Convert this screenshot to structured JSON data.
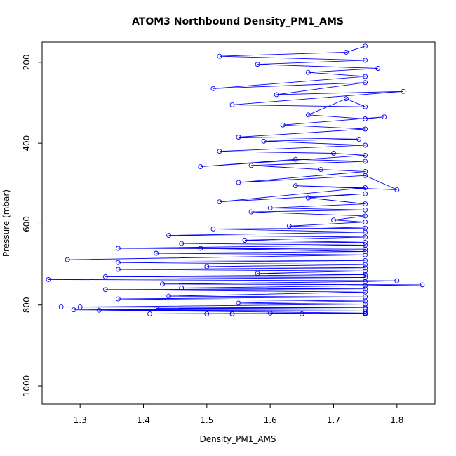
{
  "chart_data": {
    "type": "scatter",
    "title": "ATOM3 Northbound Density_PM1_AMS",
    "xlabel": "Density_PM1_AMS",
    "ylabel": "Pressure (mbar)",
    "xlim": [
      1.24,
      1.86
    ],
    "ylim": [
      1045,
      150
    ],
    "y_reversed": true,
    "x_ticks": [
      1.3,
      1.4,
      1.5,
      1.6,
      1.7,
      1.8
    ],
    "y_ticks": [
      200,
      400,
      600,
      800,
      1000
    ],
    "grid": false,
    "legend": "none",
    "color": "#0000ff",
    "series": [
      {
        "points": [
          [
            1.75,
            160
          ],
          [
            1.72,
            175
          ],
          [
            1.52,
            185
          ],
          [
            1.75,
            195
          ],
          [
            1.58,
            205
          ],
          [
            1.77,
            215
          ],
          [
            1.66,
            225
          ],
          [
            1.75,
            235
          ],
          [
            1.51,
            265
          ],
          [
            1.75,
            250
          ],
          [
            1.61,
            280
          ],
          [
            1.81,
            272
          ],
          [
            1.54,
            305
          ],
          [
            1.75,
            310
          ],
          [
            1.72,
            290
          ],
          [
            1.66,
            330
          ],
          [
            1.75,
            340
          ],
          [
            1.78,
            335
          ],
          [
            1.62,
            355
          ],
          [
            1.75,
            365
          ],
          [
            1.55,
            385
          ],
          [
            1.74,
            390
          ],
          [
            1.59,
            395
          ],
          [
            1.75,
            405
          ],
          [
            1.52,
            420
          ],
          [
            1.7,
            425
          ],
          [
            1.75,
            430
          ],
          [
            1.49,
            458
          ],
          [
            1.64,
            440
          ],
          [
            1.75,
            445
          ],
          [
            1.57,
            455
          ],
          [
            1.68,
            465
          ],
          [
            1.75,
            470
          ],
          [
            1.55,
            497
          ],
          [
            1.75,
            480
          ],
          [
            1.8,
            515
          ],
          [
            1.64,
            505
          ],
          [
            1.75,
            510
          ],
          [
            1.52,
            545
          ],
          [
            1.75,
            525
          ],
          [
            1.66,
            535
          ],
          [
            1.75,
            550
          ],
          [
            1.6,
            560
          ],
          [
            1.75,
            565
          ],
          [
            1.57,
            570
          ],
          [
            1.75,
            580
          ],
          [
            1.7,
            590
          ],
          [
            1.75,
            595
          ],
          [
            1.63,
            605
          ],
          [
            1.75,
            610
          ],
          [
            1.51,
            612
          ],
          [
            1.75,
            620
          ],
          [
            1.44,
            628
          ],
          [
            1.75,
            632
          ],
          [
            1.56,
            640
          ],
          [
            1.75,
            645
          ],
          [
            1.46,
            648
          ],
          [
            1.75,
            652
          ],
          [
            1.36,
            660
          ],
          [
            1.75,
            662
          ],
          [
            1.49,
            660
          ],
          [
            1.75,
            668
          ],
          [
            1.42,
            672
          ],
          [
            1.75,
            676
          ],
          [
            1.28,
            688
          ],
          [
            1.75,
            690
          ],
          [
            1.36,
            695
          ],
          [
            1.75,
            700
          ],
          [
            1.5,
            705
          ],
          [
            1.75,
            708
          ],
          [
            1.36,
            712
          ],
          [
            1.75,
            716
          ],
          [
            1.58,
            722
          ],
          [
            1.75,
            725
          ],
          [
            1.34,
            730
          ],
          [
            1.75,
            732
          ],
          [
            1.25,
            737
          ],
          [
            1.8,
            740
          ],
          [
            1.75,
            742
          ],
          [
            1.43,
            748
          ],
          [
            1.84,
            750
          ],
          [
            1.75,
            752
          ],
          [
            1.46,
            758
          ],
          [
            1.75,
            760
          ],
          [
            1.34,
            762
          ],
          [
            1.75,
            768
          ],
          [
            1.44,
            778
          ],
          [
            1.75,
            780
          ],
          [
            1.36,
            785
          ],
          [
            1.75,
            790
          ],
          [
            1.55,
            795
          ],
          [
            1.75,
            798
          ],
          [
            1.3,
            805
          ],
          [
            1.27,
            805
          ],
          [
            1.75,
            806
          ],
          [
            1.42,
            808
          ],
          [
            1.75,
            810
          ],
          [
            1.29,
            812
          ],
          [
            1.75,
            815
          ],
          [
            1.33,
            813
          ],
          [
            1.75,
            820
          ],
          [
            1.41,
            822
          ],
          [
            1.75,
            822
          ],
          [
            1.5,
            822
          ],
          [
            1.75,
            822
          ],
          [
            1.54,
            822
          ],
          [
            1.75,
            822
          ],
          [
            1.65,
            822
          ],
          [
            1.75,
            822
          ],
          [
            1.54,
            822
          ],
          [
            1.75,
            821
          ],
          [
            1.6,
            820
          ]
        ]
      }
    ]
  }
}
